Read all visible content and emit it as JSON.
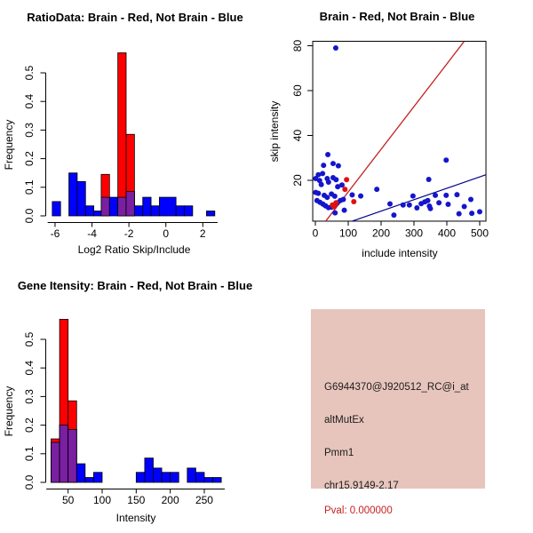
{
  "colors": {
    "hist_blue": "#0000ff",
    "hist_red": "#ff0000",
    "hist_overlap": "#7a1fa2",
    "bar_border": "#000000",
    "point_blue": "#1515cc",
    "point_red": "#e01010",
    "line_red": "#c42121",
    "line_blue": "#00008b",
    "axis": "#000000",
    "info_bg": "#e7c5bc",
    "info_text": "#1c1c1c",
    "pval_red": "#c42121"
  },
  "chart_data": [
    {
      "type": "histogram",
      "title": "RatioData: Brain - Red, Not Brain - Blue",
      "xlabel": "Log2 Ratio Skip/Include",
      "ylabel": "Frequency",
      "legend": "Brain = red bars, Not Brain = blue bars, overlap = purple",
      "xlim": [
        -6.4,
        2.8
      ],
      "ylim": [
        0,
        0.575
      ],
      "xticks": [
        -6,
        -4,
        -2,
        0,
        2
      ],
      "yticks": [
        "0.0",
        "0.1",
        "0.2",
        "0.3",
        "0.4",
        "0.5"
      ],
      "grid": false,
      "bins": [
        {
          "x0": -6.15,
          "x1": -5.7,
          "blue": 0.05,
          "red": 0
        },
        {
          "x0": -5.25,
          "x1": -4.8,
          "blue": 0.15,
          "red": 0
        },
        {
          "x0": -4.8,
          "x1": -4.35,
          "blue": 0.12,
          "red": 0
        },
        {
          "x0": -4.35,
          "x1": -3.9,
          "blue": 0.035,
          "red": 0
        },
        {
          "x0": -3.9,
          "x1": -3.5,
          "blue": 0.017,
          "red": 0
        },
        {
          "x0": -3.5,
          "x1": -3.05,
          "blue": 0.065,
          "red": 0.145
        },
        {
          "x0": -3.05,
          "x1": -2.6,
          "blue": 0.065,
          "red": 0
        },
        {
          "x0": -2.6,
          "x1": -2.15,
          "blue": 0.065,
          "red": 0.57
        },
        {
          "x0": -2.15,
          "x1": -1.7,
          "blue": 0.085,
          "red": 0.285
        },
        {
          "x0": -1.7,
          "x1": -1.25,
          "blue": 0.035,
          "red": 0
        },
        {
          "x0": -1.25,
          "x1": -0.8,
          "blue": 0.065,
          "red": 0
        },
        {
          "x0": -0.8,
          "x1": -0.35,
          "blue": 0.035,
          "red": 0
        },
        {
          "x0": -0.35,
          "x1": 0.55,
          "blue": 0.065,
          "red": 0
        },
        {
          "x0": 0.55,
          "x1": 1.0,
          "blue": 0.035,
          "red": 0
        },
        {
          "x0": 1.0,
          "x1": 1.45,
          "blue": 0.035,
          "red": 0
        },
        {
          "x0": 2.2,
          "x1": 2.65,
          "blue": 0.017,
          "red": 0
        }
      ]
    },
    {
      "type": "scatter",
      "title": "Brain - Red, Not Brain - Blue",
      "xlabel": "include intensity",
      "ylabel": "skip intensity",
      "legend": "Brain = red points, Not Brain = blue points",
      "xlim": [
        -8,
        519
      ],
      "ylim": [
        1.8,
        82
      ],
      "xticks": [
        0,
        100,
        200,
        300,
        400,
        500
      ],
      "yticks": [
        20,
        40,
        60,
        80
      ],
      "grid": false,
      "red_line": [
        [
          31.5,
          1.8
        ],
        [
          452,
          81.8
        ]
      ],
      "blue_line": [
        [
          112,
          1.8
        ],
        [
          519,
          22.5
        ]
      ],
      "blue_points": [
        [
          62,
          79
        ],
        [
          38,
          31.5
        ],
        [
          25,
          26.7
        ],
        [
          54,
          27.5
        ],
        [
          70,
          26.5
        ],
        [
          9,
          22.5
        ],
        [
          22,
          23
        ],
        [
          1,
          20.8
        ],
        [
          13,
          19.9
        ],
        [
          36,
          20.8
        ],
        [
          54,
          21.2
        ],
        [
          63,
          20.3
        ],
        [
          40,
          19.2
        ],
        [
          18,
          18.1
        ],
        [
          68,
          17.2
        ],
        [
          81,
          17.9
        ],
        [
          1,
          14.6
        ],
        [
          9,
          14.2
        ],
        [
          27,
          13.3
        ],
        [
          36,
          12.4
        ],
        [
          49,
          13.9
        ],
        [
          59,
          12.9
        ],
        [
          5,
          11
        ],
        [
          14,
          10.2
        ],
        [
          23,
          9.4
        ],
        [
          31,
          8.6
        ],
        [
          40,
          7.8
        ],
        [
          49,
          8
        ],
        [
          58,
          9
        ],
        [
          67,
          10
        ],
        [
          76,
          11
        ],
        [
          85,
          11.5
        ],
        [
          60,
          5.5
        ],
        [
          88,
          6.7
        ],
        [
          112,
          13.5
        ],
        [
          138,
          13
        ],
        [
          187,
          16
        ],
        [
          227,
          9.5
        ],
        [
          239,
          4.5
        ],
        [
          267,
          9
        ],
        [
          286,
          9
        ],
        [
          297,
          13
        ],
        [
          309,
          7.7
        ],
        [
          322,
          9.6
        ],
        [
          333,
          10.4
        ],
        [
          342,
          11
        ],
        [
          347,
          8.5
        ],
        [
          350,
          7.4
        ],
        [
          345,
          20.4
        ],
        [
          365,
          13.3
        ],
        [
          376,
          10
        ],
        [
          398,
          29
        ],
        [
          398,
          13.3
        ],
        [
          404,
          9.3
        ],
        [
          431,
          13.6
        ],
        [
          437,
          5.1
        ],
        [
          453,
          8.3
        ],
        [
          473,
          11.5
        ],
        [
          476,
          5.3
        ],
        [
          500,
          6
        ]
      ],
      "red_points": [
        [
          52,
          9
        ],
        [
          57,
          8.2
        ],
        [
          63,
          10
        ],
        [
          90,
          16
        ],
        [
          95,
          20.3
        ],
        [
          117,
          10.5
        ]
      ]
    },
    {
      "type": "histogram",
      "title": "Gene Itensity: Brain - Red, Not Brain - Blue",
      "xlabel": "Intensity",
      "ylabel": "Frequency",
      "legend": "Brain = red bars, Not Brain = blue bars, overlap = purple",
      "xlim": [
        18,
        280
      ],
      "ylim": [
        0,
        0.575
      ],
      "xticks": [
        50,
        100,
        150,
        200,
        250
      ],
      "yticks": [
        "0.0",
        "0.1",
        "0.2",
        "0.3",
        "0.4",
        "0.5"
      ],
      "grid": false,
      "bins": [
        {
          "x0": 25,
          "x1": 37.5,
          "blue": 0.14,
          "red": 0.152
        },
        {
          "x0": 37.5,
          "x1": 50,
          "blue": 0.2,
          "red": 0.57
        },
        {
          "x0": 50,
          "x1": 62.5,
          "blue": 0.185,
          "red": 0.285
        },
        {
          "x0": 62.5,
          "x1": 75,
          "blue": 0.065,
          "red": 0
        },
        {
          "x0": 75,
          "x1": 87.5,
          "blue": 0.017,
          "red": 0
        },
        {
          "x0": 87.5,
          "x1": 100,
          "blue": 0.035,
          "red": 0
        },
        {
          "x0": 150,
          "x1": 162.5,
          "blue": 0.035,
          "red": 0
        },
        {
          "x0": 162.5,
          "x1": 175,
          "blue": 0.085,
          "red": 0
        },
        {
          "x0": 175,
          "x1": 187.5,
          "blue": 0.05,
          "red": 0
        },
        {
          "x0": 187.5,
          "x1": 200,
          "blue": 0.035,
          "red": 0
        },
        {
          "x0": 200,
          "x1": 212.5,
          "blue": 0.035,
          "red": 0
        },
        {
          "x0": 225,
          "x1": 237.5,
          "blue": 0.05,
          "red": 0
        },
        {
          "x0": 237.5,
          "x1": 250,
          "blue": 0.035,
          "red": 0
        },
        {
          "x0": 250,
          "x1": 262.5,
          "blue": 0.017,
          "red": 0
        },
        {
          "x0": 262.5,
          "x1": 275,
          "blue": 0.017,
          "red": 0
        }
      ]
    }
  ],
  "info_panel": {
    "probe_id": "G6944370@J920512_RC@i_at",
    "event_type": "altMutEx",
    "gene_name": "Pmm1",
    "locus": "chr15.9149-2.17",
    "pval": "Pval: 0.000000"
  }
}
